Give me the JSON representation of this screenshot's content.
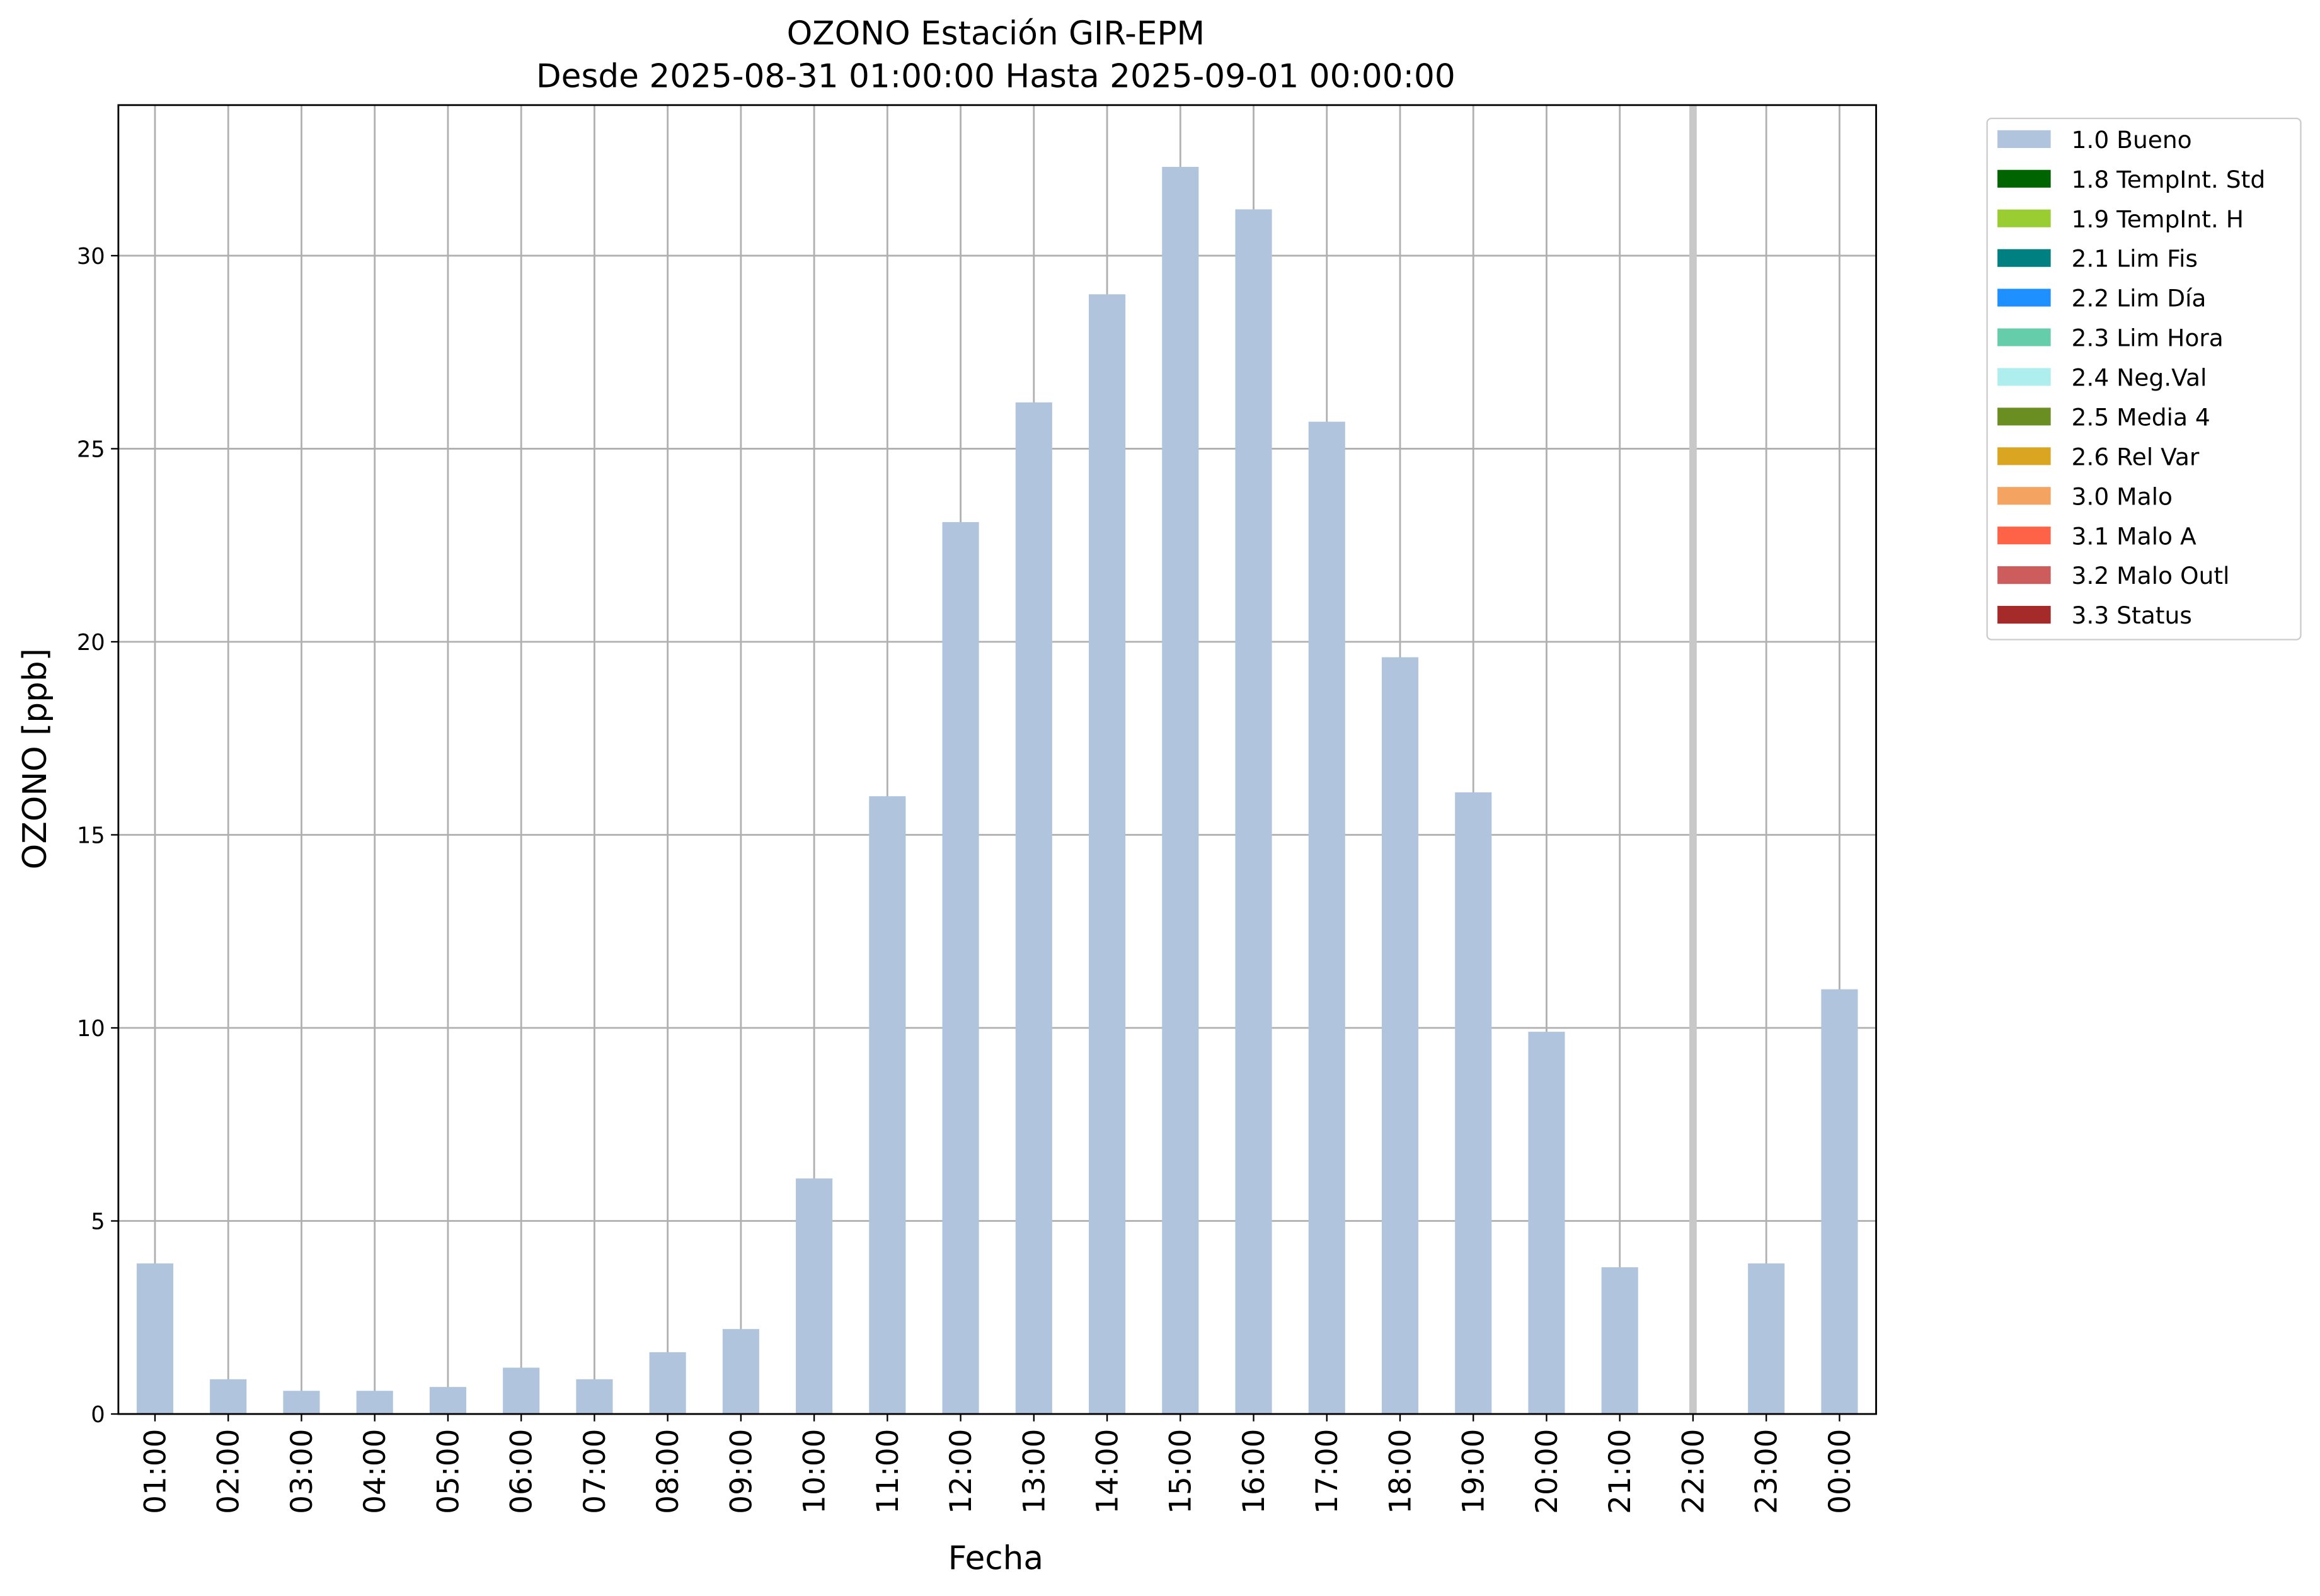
{
  "chart_data": {
    "type": "bar",
    "stacked": true,
    "title": "OZONO Estación GIR-EPM",
    "subtitle": "Desde 2025-08-31 01:00:00 Hasta 2025-09-01 00:00:00",
    "x_label": "Fecha",
    "y_label": "OZONO [ppb]",
    "categories": [
      "01:00",
      "02:00",
      "03:00",
      "04:00",
      "05:00",
      "06:00",
      "07:00",
      "08:00",
      "09:00",
      "10:00",
      "11:00",
      "12:00",
      "13:00",
      "14:00",
      "15:00",
      "16:00",
      "17:00",
      "18:00",
      "19:00",
      "20:00",
      "21:00",
      "22:00",
      "23:00",
      "00:00"
    ],
    "ylim": [
      0,
      33.9
    ],
    "yticks": [
      0,
      5,
      10,
      15,
      20,
      25,
      30
    ],
    "grid": true,
    "legend": "outside upper right",
    "series": [
      {
        "name": "1.0 Bueno",
        "color": "#b0c4de",
        "values": [
          3.9,
          0.9,
          0.6,
          0.6,
          0.7,
          1.2,
          0.9,
          1.6,
          2.2,
          6.1,
          16.0,
          23.1,
          26.2,
          29.0,
          32.3,
          31.2,
          25.7,
          19.6,
          16.1,
          9.9,
          3.8,
          null,
          3.9,
          11.0
        ]
      },
      {
        "name": "1.8 TempInt. Std",
        "color": "#006400",
        "values": [
          null,
          null,
          null,
          null,
          null,
          null,
          null,
          null,
          null,
          null,
          null,
          null,
          null,
          null,
          null,
          null,
          null,
          null,
          null,
          null,
          null,
          null,
          null,
          null
        ]
      },
      {
        "name": "1.9 TempInt. H",
        "color": "#9acd32",
        "values": [
          null,
          null,
          null,
          null,
          null,
          null,
          null,
          null,
          null,
          null,
          null,
          null,
          null,
          null,
          null,
          null,
          null,
          null,
          null,
          null,
          null,
          null,
          null,
          null
        ]
      },
      {
        "name": "2.1 Lim Fis",
        "color": "#008080",
        "values": [
          null,
          null,
          null,
          null,
          null,
          null,
          null,
          null,
          null,
          null,
          null,
          null,
          null,
          null,
          null,
          null,
          null,
          null,
          null,
          null,
          null,
          null,
          null,
          null
        ]
      },
      {
        "name": "2.2 Lim Día",
        "color": "#1e90ff",
        "values": [
          null,
          null,
          null,
          null,
          null,
          null,
          null,
          null,
          null,
          null,
          null,
          null,
          null,
          null,
          null,
          null,
          null,
          null,
          null,
          null,
          null,
          null,
          null,
          null
        ]
      },
      {
        "name": "2.3 Lim Hora",
        "color": "#66cdaa",
        "values": [
          null,
          null,
          null,
          null,
          null,
          null,
          null,
          null,
          null,
          null,
          null,
          null,
          null,
          null,
          null,
          null,
          null,
          null,
          null,
          null,
          null,
          null,
          null,
          null
        ]
      },
      {
        "name": "2.4 Neg.Val",
        "color": "#afeeee",
        "values": [
          null,
          null,
          null,
          null,
          null,
          null,
          null,
          null,
          null,
          null,
          null,
          null,
          null,
          null,
          null,
          null,
          null,
          null,
          null,
          null,
          null,
          null,
          null,
          null
        ]
      },
      {
        "name": "2.5 Media 4",
        "color": "#6b8e23",
        "values": [
          null,
          null,
          null,
          null,
          null,
          null,
          null,
          null,
          null,
          null,
          null,
          null,
          null,
          null,
          null,
          null,
          null,
          null,
          null,
          null,
          null,
          null,
          null,
          null
        ]
      },
      {
        "name": "2.6 Rel Var",
        "color": "#daa520",
        "values": [
          null,
          null,
          null,
          null,
          null,
          null,
          null,
          null,
          null,
          null,
          null,
          null,
          null,
          null,
          null,
          null,
          null,
          null,
          null,
          null,
          null,
          null,
          null,
          null
        ]
      },
      {
        "name": "3.0 Malo",
        "color": "#f4a460",
        "values": [
          null,
          null,
          null,
          null,
          null,
          null,
          null,
          null,
          null,
          null,
          null,
          null,
          null,
          null,
          null,
          null,
          null,
          null,
          null,
          null,
          null,
          null,
          null,
          null
        ]
      },
      {
        "name": "3.1 Malo A",
        "color": "#ff6347",
        "values": [
          null,
          null,
          null,
          null,
          null,
          null,
          null,
          null,
          null,
          null,
          null,
          null,
          null,
          null,
          null,
          null,
          null,
          null,
          null,
          null,
          null,
          null,
          null,
          null
        ]
      },
      {
        "name": "3.2 Malo Outl",
        "color": "#cd5c5c",
        "values": [
          null,
          null,
          null,
          null,
          null,
          null,
          null,
          null,
          null,
          null,
          null,
          null,
          null,
          null,
          null,
          null,
          null,
          null,
          null,
          null,
          null,
          null,
          null,
          null
        ]
      },
      {
        "name": "3.3 Status",
        "color": "#a52a2a",
        "values": [
          null,
          null,
          null,
          null,
          null,
          null,
          null,
          null,
          null,
          null,
          null,
          null,
          null,
          null,
          null,
          null,
          null,
          null,
          null,
          null,
          null,
          null,
          null,
          null
        ]
      }
    ]
  }
}
